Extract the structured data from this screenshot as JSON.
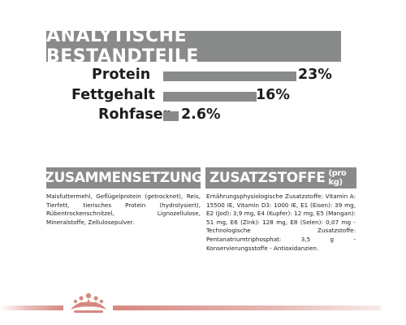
{
  "analysis": {
    "title": "ANALYTISCHE BESTANDTEILE",
    "items": [
      {
        "label": "Protein",
        "value": "23%",
        "percent": 23
      },
      {
        "label": "Fettgehalt",
        "value": "16%",
        "percent": 16
      },
      {
        "label": "Rohfaser",
        "value": "2.6%",
        "percent": 2.6
      }
    ]
  },
  "composition": {
    "title": "ZUSAMMENSETZUNG",
    "text": "Maisfuttermehl, Geflügelprotein (getrocknet), Reis, Tierfett, tierisches Protein (hydrolysiert), Rübentrockenschnitzel, Lignozellulose, Mineralstoffe, Zellulosepulver."
  },
  "additives": {
    "title": "ZUSATZSTOFFE",
    "title_sub": "(pro kg)",
    "text": "Ernährungsphysiologische Zusatzstoffe: Vitamin A: 15500 IE, Vitamin D3: 1000 IE, E1 (Eisen): 39 mg, E2 (Jod): 3,9 mg, E4 (Kupfer): 12 mg, E5 (Mangan): 51 mg, E6 (Zink): 128 mg, E8 (Selen): 0,07 mg - Technologische Zusatzstoffe: Pentanatriumtriphosphat: 3,5 g - Konservierungsstoffe - Antioxidanzien."
  },
  "colors": {
    "banner_gray": "#898b8a",
    "brand_red": "#d6897f"
  },
  "footer": {
    "logo_icon": "royal-canin-crown-icon"
  }
}
